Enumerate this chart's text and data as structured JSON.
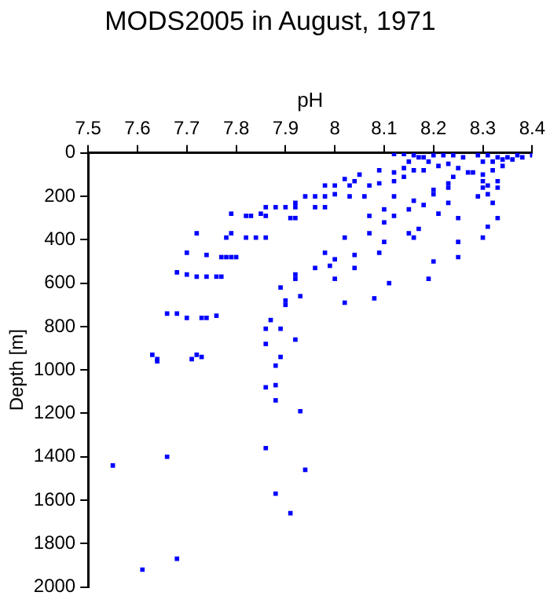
{
  "chart_data": {
    "type": "scatter",
    "title": "MODS2005 in August, 1971",
    "xlabel": "pH",
    "ylabel": "Depth [m]",
    "color": "#0000ff",
    "marker": "square",
    "xlim": [
      7.5,
      8.4
    ],
    "xticks": [
      7.5,
      7.6,
      7.7,
      7.8,
      7.9,
      8,
      8.1,
      8.2,
      8.3,
      8.4
    ],
    "ylim": [
      2000,
      0
    ],
    "yticks": [
      0,
      200,
      400,
      600,
      800,
      1000,
      1200,
      1400,
      1600,
      1800,
      2000
    ],
    "x": [
      8.12,
      8.14,
      8.16,
      8.18,
      8.2,
      8.22,
      8.24,
      8.26,
      8.29,
      8.31,
      8.33,
      8.35,
      8.37,
      8.4,
      8.15,
      8.17,
      8.19,
      8.23,
      8.3,
      8.32,
      8.34,
      8.36,
      8.38,
      8.14,
      8.16,
      8.18,
      8.21,
      8.25,
      8.28,
      8.3,
      8.32,
      8.34,
      8.09,
      8.12,
      8.14,
      8.3,
      8.33,
      8.31,
      8.24,
      8.27,
      8.23,
      8.23,
      8.2,
      8.2,
      8.3,
      8.29,
      8.31,
      8.33,
      8.32,
      8.33,
      8.31,
      8.3,
      8.25,
      8.25,
      8.25,
      8.23,
      8.21,
      8.18,
      8.16,
      8.15,
      8.17,
      8.15,
      8.16,
      8.2,
      8.19,
      8.11,
      8.1,
      8.1,
      8.1,
      8.09,
      8.07,
      8.07,
      8.12,
      8.12,
      8.12,
      8.09,
      8.07,
      8.05,
      8.02,
      8.03,
      8.04,
      8,
      7.98,
      7.96,
      7.98,
      8,
      8.03,
      8.06,
      7.94,
      7.92,
      7.92,
      7.9,
      7.88,
      7.86,
      7.98,
      7.96,
      7.92,
      7.91,
      7.86,
      7.85,
      7.83,
      7.82,
      7.79,
      7.78,
      7.79,
      7.82,
      7.84,
      7.86,
      8.02,
      7.98,
      8,
      8.04,
      8.04,
      7.96,
      7.99,
      8,
      7.92,
      7.92,
      7.89,
      7.93,
      7.9,
      7.9,
      8.02,
      8.08,
      7.72,
      7.7,
      7.74,
      7.77,
      7.78,
      7.79,
      7.8,
      7.68,
      7.7,
      7.72,
      7.74,
      7.76,
      7.77,
      7.66,
      7.68,
      7.7,
      7.73,
      7.74,
      7.76,
      7.87,
      7.86,
      7.89,
      7.92,
      7.86,
      7.63,
      7.64,
      7.64,
      7.71,
      7.72,
      7.73,
      7.89,
      7.88,
      7.86,
      7.88,
      7.88,
      7.93,
      7.86,
      7.94,
      7.88,
      7.91,
      7.66,
      7.55,
      7.68,
      7.61
    ],
    "values": [
      5,
      5,
      10,
      20,
      10,
      10,
      10,
      20,
      10,
      10,
      20,
      20,
      10,
      10,
      40,
      20,
      40,
      50,
      40,
      40,
      30,
      30,
      20,
      70,
      80,
      80,
      60,
      70,
      90,
      100,
      80,
      60,
      80,
      90,
      110,
      130,
      130,
      150,
      110,
      90,
      140,
      160,
      170,
      190,
      160,
      200,
      190,
      160,
      230,
      300,
      340,
      390,
      300,
      410,
      480,
      230,
      280,
      240,
      220,
      260,
      350,
      370,
      390,
      500,
      580,
      600,
      260,
      320,
      410,
      460,
      290,
      370,
      290,
      200,
      130,
      140,
      150,
      100,
      120,
      150,
      130,
      150,
      150,
      200,
      200,
      190,
      200,
      200,
      200,
      230,
      250,
      250,
      250,
      250,
      250,
      250,
      300,
      300,
      290,
      280,
      290,
      290,
      280,
      390,
      370,
      390,
      390,
      390,
      390,
      460,
      490,
      470,
      530,
      530,
      520,
      580,
      560,
      580,
      620,
      660,
      680,
      700,
      690,
      670,
      370,
      460,
      470,
      480,
      480,
      480,
      480,
      550,
      560,
      570,
      570,
      570,
      570,
      740,
      740,
      760,
      760,
      760,
      750,
      770,
      810,
      810,
      860,
      880,
      930,
      950,
      960,
      950,
      930,
      940,
      940,
      980,
      1080,
      1070,
      1140,
      1190,
      1360,
      1460,
      1570,
      1660,
      1400,
      1440,
      1870,
      1920
    ]
  }
}
